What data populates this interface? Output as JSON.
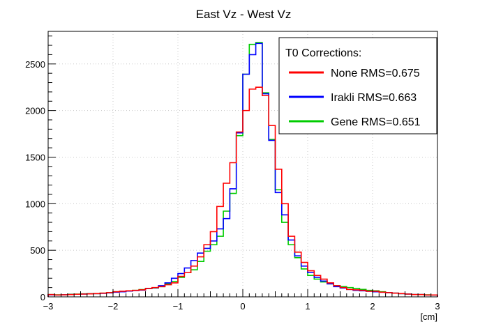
{
  "chart_data": {
    "type": "line",
    "title": "East Vz - West Vz",
    "xlabel": "[cm]",
    "ylabel": "",
    "xlim": [
      -3,
      3
    ],
    "ylim": [
      0,
      2850
    ],
    "grid": true,
    "legend": {
      "position": "top-right",
      "title": "T0 Corrections:"
    },
    "x_ticks": [
      -3,
      -2,
      -1,
      0,
      1,
      2,
      3
    ],
    "x_tick_labels": [
      "−3",
      "−2",
      "−1",
      "0",
      "1",
      "2",
      "3"
    ],
    "y_ticks": [
      0,
      500,
      1000,
      1500,
      2000,
      2500
    ],
    "y_tick_labels": [
      "0",
      "500",
      "1000",
      "1500",
      "2000",
      "2500"
    ],
    "bin_edges": [
      -3.0,
      -2.9,
      -2.8,
      -2.7,
      -2.6,
      -2.5,
      -2.4,
      -2.3,
      -2.2,
      -2.1,
      -2.0,
      -1.9,
      -1.8,
      -1.7,
      -1.6,
      -1.5,
      -1.4,
      -1.3,
      -1.2,
      -1.1,
      -1.0,
      -0.9,
      -0.8,
      -0.7,
      -0.6,
      -0.5,
      -0.4,
      -0.3,
      -0.2,
      -0.1,
      0.0,
      0.1,
      0.2,
      0.3,
      0.4,
      0.5,
      0.6,
      0.7,
      0.8,
      0.9,
      1.0,
      1.1,
      1.2,
      1.3,
      1.4,
      1.5,
      1.6,
      1.7,
      1.8,
      1.9,
      2.0,
      2.1,
      2.2,
      2.3,
      2.4,
      2.5,
      2.6,
      2.7,
      2.8,
      2.9,
      3.0
    ],
    "series": [
      {
        "name": "None RMS=0.675",
        "color": "#ff0000",
        "values": [
          25,
          20,
          22,
          25,
          28,
          30,
          32,
          35,
          40,
          45,
          55,
          60,
          65,
          70,
          75,
          90,
          100,
          110,
          130,
          150,
          220,
          260,
          330,
          430,
          560,
          700,
          970,
          1220,
          1440,
          1770,
          2000,
          2230,
          2250,
          2160,
          1840,
          1370,
          1000,
          650,
          480,
          370,
          280,
          230,
          190,
          150,
          120,
          100,
          80,
          75,
          70,
          60,
          60,
          50,
          45,
          40,
          35,
          30,
          25,
          25,
          20,
          20
        ]
      },
      {
        "name": "Irakli RMS=0.663",
        "color": "#0000ff",
        "values": [
          22,
          20,
          22,
          25,
          28,
          30,
          32,
          35,
          38,
          42,
          50,
          55,
          62,
          68,
          72,
          90,
          98,
          120,
          150,
          200,
          250,
          310,
          390,
          470,
          520,
          600,
          730,
          840,
          1160,
          1760,
          2390,
          2600,
          2720,
          2180,
          1680,
          1120,
          880,
          610,
          440,
          330,
          260,
          210,
          170,
          140,
          110,
          95,
          80,
          70,
          65,
          60,
          55,
          50,
          45,
          40,
          35,
          30,
          25,
          25,
          20,
          20
        ]
      },
      {
        "name": "Gene RMS=0.651",
        "color": "#00cc00",
        "values": [
          25,
          22,
          22,
          28,
          30,
          32,
          33,
          35,
          40,
          45,
          55,
          58,
          62,
          70,
          78,
          90,
          95,
          110,
          140,
          165,
          210,
          260,
          290,
          380,
          490,
          560,
          650,
          920,
          1110,
          1730,
          2390,
          2710,
          2730,
          2190,
          1690,
          1150,
          800,
          560,
          420,
          300,
          230,
          190,
          160,
          140,
          120,
          110,
          100,
          90,
          80,
          70,
          65,
          55,
          45,
          40,
          35,
          30,
          25,
          25,
          22,
          20
        ]
      }
    ]
  }
}
